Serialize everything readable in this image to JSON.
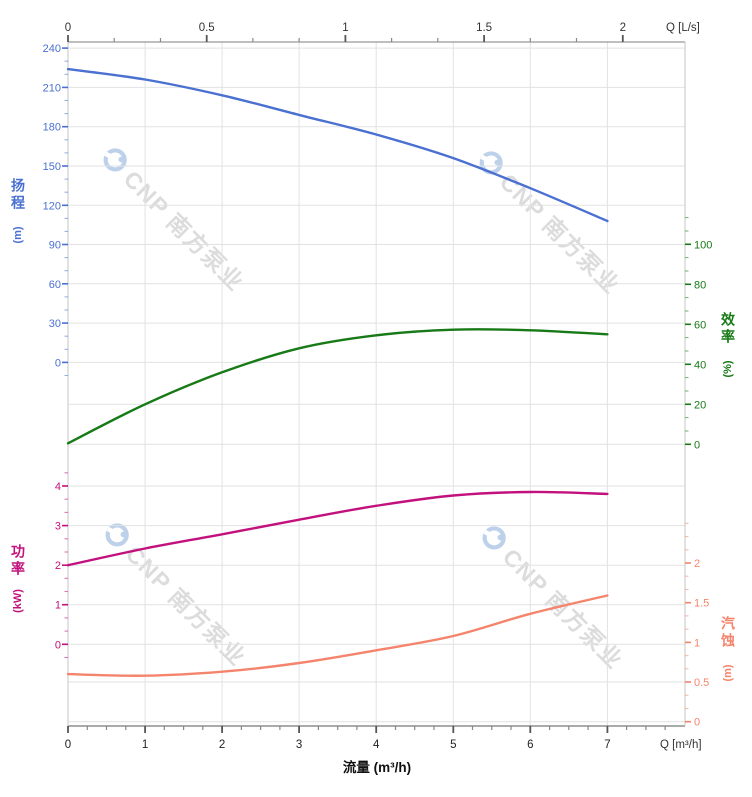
{
  "watermark": {
    "text": "CNP 南方泵业"
  },
  "chart_data": {
    "type": "line",
    "title": "",
    "x": [
      0,
      1,
      2,
      3,
      4,
      5,
      6,
      7
    ],
    "xlabel": "流量 (m³/h)",
    "series": [
      {
        "name": "扬程",
        "axis": "head",
        "color": "#4a70d2",
        "values": [
          224,
          216,
          204,
          189,
          174,
          156,
          133,
          108
        ]
      },
      {
        "name": "效率",
        "axis": "eff",
        "color": "#177a17",
        "values": [
          0.5,
          20,
          36,
          48,
          54.5,
          57.3,
          57,
          55
        ]
      },
      {
        "name": "功率",
        "axis": "power",
        "color": "#c2117c",
        "values": [
          2.0,
          2.42,
          2.78,
          3.15,
          3.5,
          3.76,
          3.85,
          3.8
        ]
      },
      {
        "name": "汽蚀",
        "axis": "npsh",
        "color": "#f5846c",
        "values": [
          0.6,
          0.58,
          0.63,
          0.74,
          0.9,
          1.08,
          1.36,
          1.59
        ]
      }
    ],
    "axes": {
      "top": {
        "title": "Q [L/s]",
        "ticks": [
          "0",
          "0.5",
          "1",
          "1.5",
          "2"
        ]
      },
      "bottom": {
        "title": "Q [m³/h]",
        "label": "流量 (m³/h)",
        "ticks": [
          "0",
          "1",
          "2",
          "3",
          "4",
          "5",
          "6",
          "7"
        ]
      },
      "head": {
        "name": "扬程",
        "unit": "(m)",
        "color": "#4a70d2",
        "ticks": [
          "0",
          "30",
          "60",
          "90",
          "120",
          "150",
          "180",
          "210",
          "240"
        ]
      },
      "eff": {
        "name": "效率",
        "unit": "(%)",
        "color": "#177a17",
        "ticks": [
          "0",
          "20",
          "40",
          "60",
          "80",
          "100"
        ]
      },
      "power": {
        "name": "功率",
        "unit": "(kW)",
        "color": "#c2117c",
        "ticks": [
          "0",
          "1",
          "2",
          "3",
          "4"
        ]
      },
      "npsh": {
        "name": "汽蚀",
        "unit": "(m)",
        "color": "#f5846c",
        "ticks": [
          "0",
          "0.5",
          "1",
          "1.5",
          "2"
        ]
      }
    },
    "grid": true,
    "legend": "none"
  }
}
